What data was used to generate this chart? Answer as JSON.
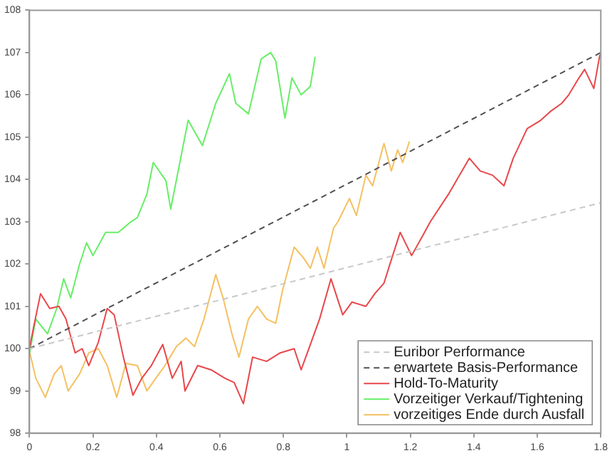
{
  "chart_data": {
    "type": "line",
    "xlim": [
      0,
      1.8
    ],
    "xticks": [
      0,
      0.2,
      0.4,
      0.6,
      0.8,
      1,
      1.2,
      1.4,
      1.6,
      1.8
    ],
    "ylim": [
      98,
      108
    ],
    "yticks": [
      98,
      99,
      100,
      101,
      102,
      103,
      104,
      105,
      106,
      107,
      108
    ],
    "grid": false,
    "legend": "bottom right",
    "marker": "none",
    "series": [
      {
        "name": "Euribor Performance",
        "color": "#c8c8c8",
        "line_style": "dashed",
        "x": [
          0,
          1.8
        ],
        "values": [
          100,
          103.45
        ]
      },
      {
        "name": "erwartete Basis-Performance",
        "color": "#505050",
        "line_style": "dashed",
        "x": [
          0,
          1.8
        ],
        "values": [
          100,
          107
        ]
      },
      {
        "name": "Hold-To-Maturity",
        "color": "#e8474a",
        "line_style": "solid",
        "x": [
          0,
          0.013,
          0.035,
          0.064,
          0.093,
          0.115,
          0.144,
          0.166,
          0.187,
          0.217,
          0.245,
          0.267,
          0.296,
          0.326,
          0.354,
          0.384,
          0.42,
          0.45,
          0.478,
          0.49,
          0.53,
          0.572,
          0.616,
          0.645,
          0.674,
          0.703,
          0.747,
          0.79,
          0.834,
          0.856,
          0.885,
          0.914,
          0.95,
          0.987,
          1.016,
          1.06,
          1.088,
          1.117,
          1.14,
          1.168,
          1.204,
          1.241,
          1.263,
          1.32,
          1.386,
          1.42,
          1.459,
          1.495,
          1.524,
          1.568,
          1.611,
          1.64,
          1.677,
          1.699,
          1.727,
          1.749,
          1.778,
          1.797
        ],
        "values": [
          100,
          100.5,
          101.3,
          100.95,
          101,
          100.7,
          99.9,
          100,
          99.6,
          100.15,
          100.95,
          100.8,
          99.8,
          98.9,
          99.3,
          99.6,
          100.1,
          99.3,
          99.7,
          99,
          99.6,
          99.5,
          99.3,
          99.2,
          98.7,
          99.8,
          99.7,
          99.9,
          100,
          99.5,
          100.1,
          100.7,
          101.65,
          100.8,
          101.1,
          101,
          101.3,
          101.55,
          102.1,
          102.75,
          102.2,
          102.7,
          103,
          103.65,
          104.5,
          104.2,
          104.1,
          103.85,
          104.5,
          105.2,
          105.4,
          105.6,
          105.8,
          106,
          106.35,
          106.6,
          106.15,
          106.95
        ]
      },
      {
        "name": "Vorzeitiger Verkauf/Tightening",
        "color": "#66ee66",
        "line_style": "solid",
        "x": [
          0,
          0.02,
          0.057,
          0.086,
          0.108,
          0.13,
          0.158,
          0.18,
          0.2,
          0.24,
          0.28,
          0.32,
          0.34,
          0.37,
          0.39,
          0.43,
          0.445,
          0.5,
          0.545,
          0.587,
          0.63,
          0.65,
          0.69,
          0.73,
          0.76,
          0.776,
          0.805,
          0.827,
          0.856,
          0.885,
          0.9
        ],
        "values": [
          99.87,
          100.7,
          100.35,
          100.95,
          101.65,
          101.2,
          102,
          102.5,
          102.2,
          102.75,
          102.75,
          103,
          103.1,
          103.65,
          104.4,
          103.97,
          103.3,
          105.4,
          104.8,
          105.8,
          106.5,
          105.8,
          105.55,
          106.85,
          107,
          106.8,
          105.45,
          106.4,
          106,
          106.2,
          106.9
        ]
      },
      {
        "name": "vorzeitiges Ende durch Ausfall",
        "color": "#f5c060",
        "line_style": "solid",
        "x": [
          0,
          0.02,
          0.05,
          0.078,
          0.1,
          0.122,
          0.158,
          0.187,
          0.217,
          0.245,
          0.275,
          0.304,
          0.34,
          0.37,
          0.398,
          0.427,
          0.463,
          0.493,
          0.52,
          0.55,
          0.587,
          0.61,
          0.638,
          0.66,
          0.69,
          0.718,
          0.747,
          0.776,
          0.798,
          0.834,
          0.863,
          0.885,
          0.907,
          0.928,
          0.958,
          0.972,
          1.008,
          1.03,
          1.06,
          1.081,
          1.117,
          1.14,
          1.16,
          1.176,
          1.197
        ],
        "values": [
          99.95,
          99.3,
          98.85,
          99.4,
          99.6,
          99,
          99.4,
          99.9,
          100,
          99.6,
          98.85,
          99.65,
          99.6,
          99,
          99.3,
          99.6,
          100.05,
          100.25,
          100.05,
          100.7,
          101.75,
          101.2,
          100.35,
          99.8,
          100.7,
          101,
          100.7,
          100.6,
          101.4,
          102.4,
          102.15,
          101.9,
          102.4,
          101.9,
          102.85,
          103,
          103.55,
          103.15,
          104.1,
          103.85,
          104.85,
          104.2,
          104.7,
          104.4,
          104.9
        ]
      }
    ]
  }
}
